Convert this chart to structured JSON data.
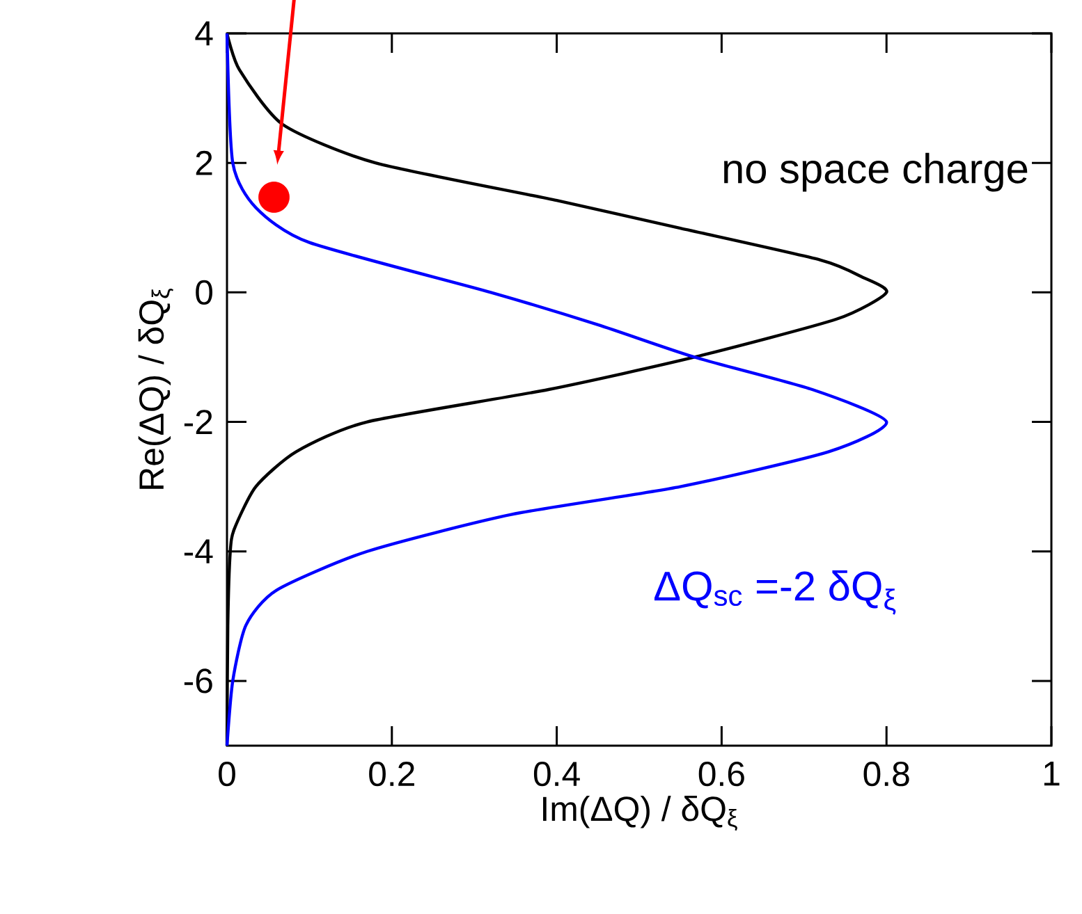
{
  "chart_data": {
    "type": "line",
    "xlabel": "Im(ΔQ) / δQ$_{ξ}$",
    "ylabel": "Re(ΔQ) / δQ$_{ξ}$",
    "xlim": [
      0,
      1
    ],
    "ylim": [
      -7,
      4
    ],
    "xticks": [
      0,
      0.2,
      0.4,
      0.6,
      0.8,
      1
    ],
    "yticks": [
      -6,
      -4,
      -2,
      0,
      2,
      4
    ],
    "grid": false,
    "series": [
      {
        "name": "no space charge",
        "color": "#000000",
        "x": [
          0,
          0.015,
          0.068,
          0.18,
          0.4,
          0.55,
          0.72,
          0.77,
          0.8,
          0.74,
          0.567,
          0.39,
          0.17,
          0.084,
          0.035,
          0.009,
          0.004,
          0.001,
          0
        ],
        "values": [
          4,
          3.44,
          2.59,
          2,
          1.42,
          0.99,
          0.5,
          0.24,
          0,
          -0.41,
          -1,
          -1.5,
          -2,
          -2.46,
          -3,
          -3.65,
          -4,
          -5.15,
          -7
        ]
      },
      {
        "name": "ΔQ$_{sc}$ =-2 δQ$_{ξ}$",
        "color": "#0000ff",
        "x": [
          0,
          0.007,
          0.035,
          0.1,
          0.32,
          0.45,
          0.567,
          0.71,
          0.8,
          0.73,
          0.55,
          0.345,
          0.17,
          0.06,
          0.023,
          0.007,
          0
        ],
        "values": [
          4,
          2,
          1.31,
          0.77,
          0,
          -0.5,
          -1,
          -1.5,
          -2,
          -2.46,
          -3,
          -3.43,
          -4,
          -4.6,
          -5.14,
          -6,
          -7
        ]
      },
      {
        "type": "scatter",
        "marker": "circle",
        "color": "#ff0000",
        "x": [
          0.057
        ],
        "values": [
          1.47
        ]
      }
    ]
  }
}
